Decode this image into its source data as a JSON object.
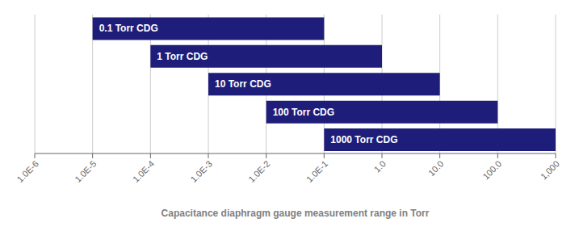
{
  "chart_data": {
    "type": "bar",
    "orientation": "horizontal",
    "x_label": "Capacitance diaphragm gauge measurement range in Torr",
    "categories": [
      "1000 Torr CDG",
      "100 Torr CDG",
      "10 Torr CDG",
      "1 Torr CDG",
      "0.1 Torr CDG"
    ],
    "values": [
      [
        0.1,
        1000.0
      ],
      [
        0.01,
        100.0
      ],
      [
        0.001,
        10.0
      ],
      [
        0.0001,
        1.0
      ],
      [
        1e-05,
        0.1
      ]
    ],
    "color": "#1e1e7a",
    "log": "x",
    "xlim": [
      1e-06,
      1000.0
    ],
    "xticks": [
      {
        "value": 1e-06,
        "label": "1.0E-6"
      },
      {
        "value": 1e-05,
        "label": "1.0E-5"
      },
      {
        "value": 0.0001,
        "label": "1.0E-4"
      },
      {
        "value": 0.001,
        "label": "1.0E-3"
      },
      {
        "value": 0.01,
        "label": "1.0E-2"
      },
      {
        "value": 0.1,
        "label": "1.0E-1"
      },
      {
        "value": 1.0,
        "label": "1.0"
      },
      {
        "value": 10.0,
        "label": "10.0"
      },
      {
        "value": 100.0,
        "label": "100.0"
      },
      {
        "value": 1000.0,
        "label": "1,000"
      }
    ],
    "grid": true,
    "tick_labels": "x"
  }
}
